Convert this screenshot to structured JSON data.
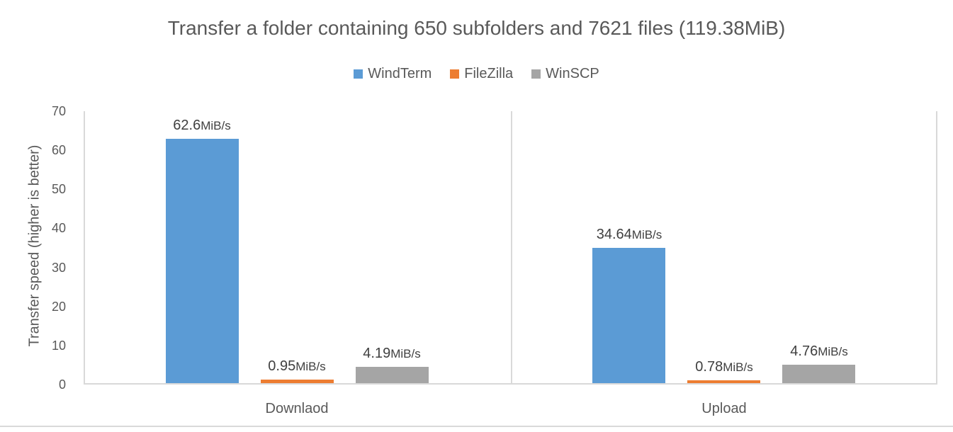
{
  "chart_data": {
    "type": "bar",
    "title": "Transfer a folder containing 650 subfolders and 7621 files (119.38MiB)",
    "categories": [
      "Downlaod",
      "Upload"
    ],
    "series": [
      {
        "name": "WindTerm",
        "color": "#5B9BD5",
        "values": [
          62.6,
          34.64
        ],
        "data_labels": [
          "62.6MiB/s",
          "34.64MiB/s"
        ]
      },
      {
        "name": "FileZilla",
        "color": "#ED7D31",
        "values": [
          0.95,
          0.78
        ],
        "data_labels": [
          "0.95MiB/s",
          "0.78MiB/s"
        ]
      },
      {
        "name": "WinSCP",
        "color": "#A5A5A5",
        "values": [
          4.19,
          4.76
        ],
        "data_labels": [
          "4.19MiB/s",
          "4.76MiB/s"
        ]
      }
    ],
    "xlabel": "",
    "ylabel": "Transfer speed (higher is better)",
    "ylim": [
      0,
      70
    ],
    "yticks": [
      0,
      10,
      20,
      30,
      40,
      50,
      60,
      70
    ],
    "legend_position": "top-center",
    "grid": false,
    "data_label_unit": "MiB/s"
  },
  "colors": {
    "title_text": "#595959",
    "axis_text": "#595959",
    "data_label_text": "#404040",
    "axis_line": "#D9D9D9",
    "background": "#FFFFFF"
  }
}
